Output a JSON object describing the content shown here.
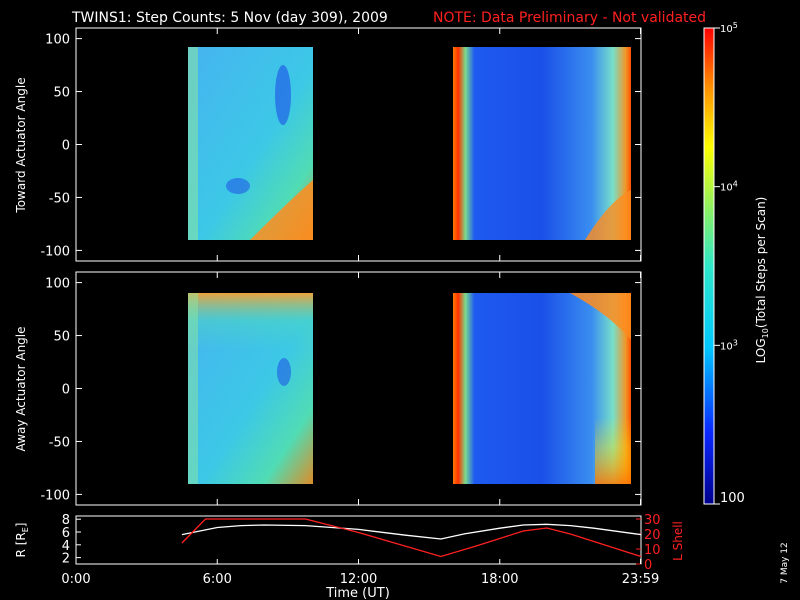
{
  "title": {
    "main": "TWINS1: Step Counts:  5 Nov (day 309), 2009",
    "note": "NOTE: Data Preliminary - Not validated",
    "note_color": "#ff2020"
  },
  "date_stamp": "7 May 12",
  "chart_data": [
    {
      "type": "heatmap",
      "ylabel": "Toward Actuator Angle",
      "ylim": [
        -110,
        110
      ],
      "yticks": [
        -100,
        -50,
        0,
        50,
        100
      ],
      "xlim_hours": [
        0,
        24
      ],
      "data_ranges_hours": [
        [
          4.5,
          9.75
        ],
        [
          16.0,
          24.0
        ]
      ],
      "data_angle_range": [
        -88,
        90
      ]
    },
    {
      "type": "heatmap",
      "ylabel": "Away Actuator Angle",
      "ylim": [
        -110,
        110
      ],
      "yticks": [
        -100,
        -50,
        0,
        50,
        100
      ],
      "xlim_hours": [
        0,
        24
      ],
      "data_ranges_hours": [
        [
          4.5,
          9.75
        ],
        [
          16.0,
          24.0
        ]
      ],
      "data_angle_range": [
        -88,
        90
      ]
    },
    {
      "type": "line",
      "left_ylabel": "R [R",
      "left_ylabel_sub": "E",
      "left_ylabel_end": "]",
      "left_ylim": [
        1,
        8.5
      ],
      "left_yticks": [
        2,
        4,
        6,
        8
      ],
      "right_ylabel": "L Shell",
      "right_ylim": [
        0,
        32
      ],
      "right_yticks": [
        0,
        10,
        20,
        30
      ],
      "right_color": "#ff2020",
      "xlabel": "Time (UT)",
      "xticks": [
        {
          "h": 0,
          "label": "0:00"
        },
        {
          "h": 6,
          "label": "6:00"
        },
        {
          "h": 12,
          "label": "12:00"
        },
        {
          "h": 18,
          "label": "18:00"
        },
        {
          "h": 23.98,
          "label": "23:59"
        }
      ],
      "series": [
        {
          "name": "R [RE]",
          "color": "#ffffff",
          "x": [
            4.5,
            6,
            7,
            8,
            9.75,
            12,
            14,
            15.5,
            16.5,
            18,
            19,
            20,
            21,
            22,
            24
          ],
          "y": [
            5.6,
            6.7,
            7.0,
            7.1,
            7.0,
            6.4,
            5.5,
            4.9,
            5.7,
            6.6,
            7.1,
            7.2,
            7.0,
            6.6,
            5.6
          ]
        },
        {
          "name": "L Shell",
          "color": "#ff2020",
          "x": [
            4.5,
            5.5,
            9.75,
            12,
            15.5,
            17,
            19,
            20,
            21,
            24
          ],
          "y": [
            14,
            30,
            30,
            21,
            5,
            12,
            22,
            24,
            20,
            5
          ]
        }
      ]
    }
  ],
  "colorbar": {
    "label": "LOG",
    "label_sub": "10",
    "label_end": "(Total Steps per Scan)",
    "ticks": [
      {
        "value": 100,
        "base": "100",
        "exp": ""
      },
      {
        "value": 1000,
        "base": "10",
        "exp": "3"
      },
      {
        "value": 10000,
        "base": "10",
        "exp": "4"
      },
      {
        "value": 100000,
        "base": "10",
        "exp": "5"
      }
    ],
    "range": [
      100,
      100000
    ]
  }
}
